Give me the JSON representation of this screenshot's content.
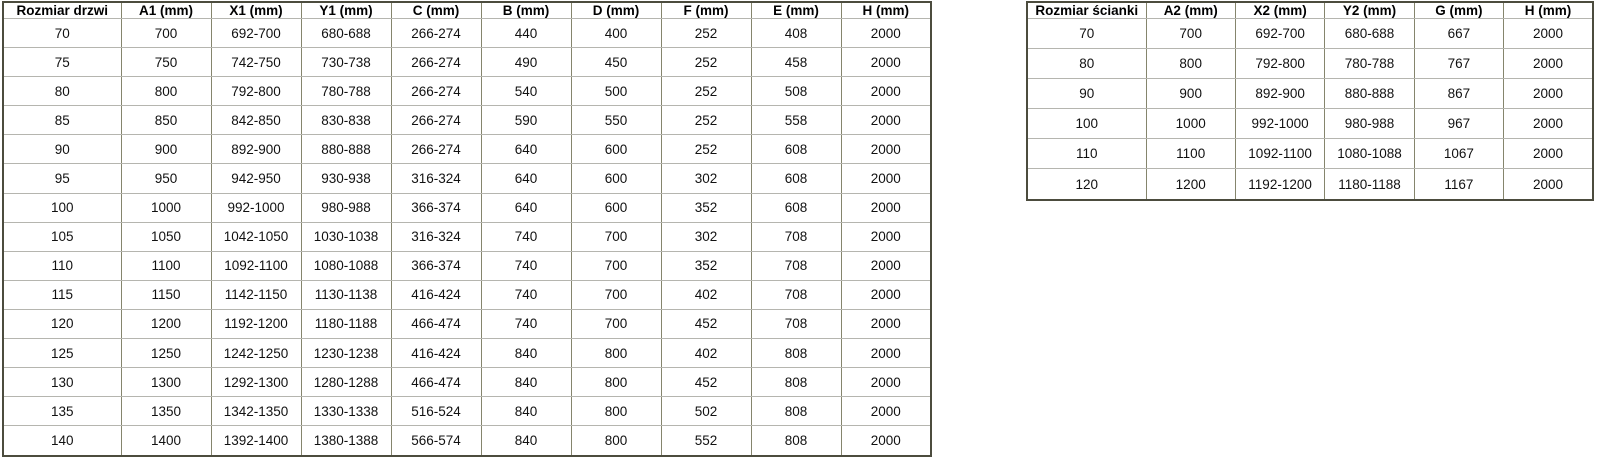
{
  "colors": {
    "background": "#ffffff",
    "border_outer": "#4c4c3e",
    "border_vertical": "#85856d",
    "border_horizontal": "#b5b5af",
    "text": "#111111"
  },
  "chart_data": [
    {
      "type": "table",
      "name": "door_sizes",
      "headers": [
        "Rozmiar drzwi",
        "A1 (mm)",
        "X1 (mm)",
        "Y1 (mm)",
        "C (mm)",
        "B (mm)",
        "D (mm)",
        "F (mm)",
        "E (mm)",
        "H (mm)"
      ],
      "rows": [
        [
          "70",
          "700",
          "692-700",
          "680-688",
          "266-274",
          "440",
          "400",
          "252",
          "408",
          "2000"
        ],
        [
          "75",
          "750",
          "742-750",
          "730-738",
          "266-274",
          "490",
          "450",
          "252",
          "458",
          "2000"
        ],
        [
          "80",
          "800",
          "792-800",
          "780-788",
          "266-274",
          "540",
          "500",
          "252",
          "508",
          "2000"
        ],
        [
          "85",
          "850",
          "842-850",
          "830-838",
          "266-274",
          "590",
          "550",
          "252",
          "558",
          "2000"
        ],
        [
          "90",
          "900",
          "892-900",
          "880-888",
          "266-274",
          "640",
          "600",
          "252",
          "608",
          "2000"
        ],
        [
          "95",
          "950",
          "942-950",
          "930-938",
          "316-324",
          "640",
          "600",
          "302",
          "608",
          "2000"
        ],
        [
          "100",
          "1000",
          "992-1000",
          "980-988",
          "366-374",
          "640",
          "600",
          "352",
          "608",
          "2000"
        ],
        [
          "105",
          "1050",
          "1042-1050",
          "1030-1038",
          "316-324",
          "740",
          "700",
          "302",
          "708",
          "2000"
        ],
        [
          "110",
          "1100",
          "1092-1100",
          "1080-1088",
          "366-374",
          "740",
          "700",
          "352",
          "708",
          "2000"
        ],
        [
          "115",
          "1150",
          "1142-1150",
          "1130-1138",
          "416-424",
          "740",
          "700",
          "402",
          "708",
          "2000"
        ],
        [
          "120",
          "1200",
          "1192-1200",
          "1180-1188",
          "466-474",
          "740",
          "700",
          "452",
          "708",
          "2000"
        ],
        [
          "125",
          "1250",
          "1242-1250",
          "1230-1238",
          "416-424",
          "840",
          "800",
          "402",
          "808",
          "2000"
        ],
        [
          "130",
          "1300",
          "1292-1300",
          "1280-1288",
          "466-474",
          "840",
          "800",
          "452",
          "808",
          "2000"
        ],
        [
          "135",
          "1350",
          "1342-1350",
          "1330-1338",
          "516-524",
          "840",
          "800",
          "502",
          "808",
          "2000"
        ],
        [
          "140",
          "1400",
          "1392-1400",
          "1380-1388",
          "566-574",
          "840",
          "800",
          "552",
          "808",
          "2000"
        ]
      ]
    },
    {
      "type": "table",
      "name": "wall_sizes",
      "headers": [
        "Rozmiar ścianki",
        "A2 (mm)",
        "X2 (mm)",
        "Y2 (mm)",
        "G (mm)",
        "H (mm)"
      ],
      "rows": [
        [
          "70",
          "700",
          "692-700",
          "680-688",
          "667",
          "2000"
        ],
        [
          "80",
          "800",
          "792-800",
          "780-788",
          "767",
          "2000"
        ],
        [
          "90",
          "900",
          "892-900",
          "880-888",
          "867",
          "2000"
        ],
        [
          "100",
          "1000",
          "992-1000",
          "980-988",
          "967",
          "2000"
        ],
        [
          "110",
          "1100",
          "1092-1100",
          "1080-1088",
          "1067",
          "2000"
        ],
        [
          "120",
          "1200",
          "1192-1200",
          "1180-1188",
          "1167",
          "2000"
        ]
      ]
    }
  ]
}
